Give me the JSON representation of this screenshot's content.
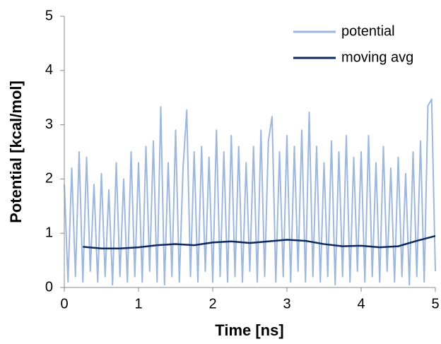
{
  "chart_data": {
    "type": "line",
    "xlabel": "Time [ns]",
    "ylabel": "Potential [kcal/mol]",
    "xlim": [
      0,
      5
    ],
    "xticks": [
      0,
      1,
      2,
      3,
      4,
      5
    ],
    "ylim": [
      0,
      5
    ],
    "yticks": [
      0,
      1,
      2,
      3,
      4,
      5
    ],
    "legend": "top-right",
    "series": [
      {
        "name": "potential",
        "color": "#9db7dd",
        "x": [
          0,
          0.05,
          0.1,
          0.15,
          0.2,
          0.25,
          0.3,
          0.35,
          0.4,
          0.45,
          0.5,
          0.55,
          0.6,
          0.65,
          0.7,
          0.75,
          0.8,
          0.85,
          0.9,
          0.95,
          1,
          1.05,
          1.1,
          1.15,
          1.2,
          1.25,
          1.3,
          1.35,
          1.4,
          1.45,
          1.5,
          1.55,
          1.6,
          1.65,
          1.7,
          1.75,
          1.8,
          1.85,
          1.9,
          1.95,
          2,
          2.05,
          2.1,
          2.15,
          2.2,
          2.25,
          2.3,
          2.35,
          2.4,
          2.45,
          2.5,
          2.55,
          2.6,
          2.65,
          2.7,
          2.75,
          2.8,
          2.85,
          2.9,
          2.95,
          3,
          3.05,
          3.1,
          3.15,
          3.2,
          3.25,
          3.3,
          3.35,
          3.4,
          3.45,
          3.5,
          3.55,
          3.6,
          3.65,
          3.7,
          3.75,
          3.8,
          3.85,
          3.9,
          3.95,
          4,
          4.05,
          4.1,
          4.15,
          4.2,
          4.25,
          4.3,
          4.35,
          4.4,
          4.45,
          4.5,
          4.55,
          4.6,
          4.65,
          4.7,
          4.75,
          4.8,
          4.85,
          4.9,
          4.95,
          5
        ],
        "values": [
          1.9,
          0.1,
          2.2,
          0.2,
          2.5,
          0.1,
          2.4,
          0.3,
          1.9,
          0.1,
          2.1,
          0.2,
          1.8,
          0.05,
          2.3,
          0.2,
          2.0,
          0.1,
          2.5,
          0.2,
          2.3,
          0.1,
          2.6,
          0.3,
          2.7,
          0.1,
          3.33,
          0.05,
          2.3,
          0.2,
          2.9,
          0.1,
          2.2,
          3.27,
          0.2,
          2.5,
          0.1,
          2.6,
          0.3,
          2.4,
          0.1,
          2.9,
          0.2,
          2.5,
          0.1,
          2.8,
          0.2,
          2.6,
          0.1,
          2.3,
          0.3,
          2.6,
          0.1,
          2.9,
          0.2,
          2.7,
          3.15,
          0.1,
          2.5,
          0.2,
          2.8,
          0.1,
          2.6,
          0.3,
          2.9,
          0.1,
          3.23,
          0.2,
          2.6,
          0.1,
          2.3,
          0.2,
          2.7,
          0.05,
          2.5,
          0.2,
          2.8,
          0.1,
          2.4,
          0.3,
          2.5,
          0.1,
          2.8,
          0.2,
          2.3,
          0.1,
          2.6,
          0.3,
          2.2,
          0.1,
          2.4,
          0.2,
          2.1,
          0.05,
          2.5,
          0.2,
          2.7,
          0.1,
          3.35,
          3.47,
          0.3
        ]
      },
      {
        "name": "moving avg",
        "color": "#0e2a5c",
        "x": [
          0.25,
          0.5,
          0.75,
          1,
          1.25,
          1.5,
          1.75,
          2,
          2.25,
          2.5,
          2.75,
          3,
          3.25,
          3.5,
          3.75,
          4,
          4.25,
          4.5,
          4.75,
          5
        ],
        "values": [
          0.75,
          0.72,
          0.72,
          0.74,
          0.78,
          0.8,
          0.78,
          0.83,
          0.85,
          0.82,
          0.85,
          0.88,
          0.86,
          0.8,
          0.76,
          0.77,
          0.74,
          0.76,
          0.86,
          0.95
        ]
      }
    ]
  }
}
